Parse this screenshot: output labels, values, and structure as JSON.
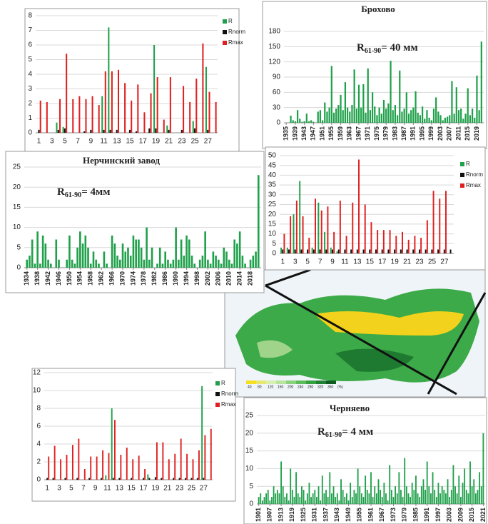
{
  "chart_data": [
    {
      "type": "bar",
      "ylim": [
        0,
        8
      ],
      "yticks": [
        0,
        1,
        2,
        3,
        4,
        5,
        6,
        7,
        8
      ],
      "grid": true,
      "legend": "right",
      "categories": [
        "1",
        null,
        "3",
        null,
        "5",
        null,
        "7",
        null,
        "9",
        null,
        "11",
        null,
        "13",
        null,
        "15",
        null,
        "17",
        null,
        "19",
        null,
        "21",
        null,
        "23",
        null,
        "25",
        null,
        "27",
        null
      ],
      "series": [
        {
          "name": "R",
          "color": "#1fa04a",
          "values": [
            0,
            0,
            0,
            0.7,
            0.4,
            0,
            0,
            0,
            0,
            0,
            2.5,
            7.2,
            0,
            0,
            0,
            0,
            0,
            0,
            6.0,
            0,
            0.5,
            0,
            0,
            0,
            0.8,
            0,
            4.5,
            0
          ]
        },
        {
          "name": "Rnorm",
          "color": "#111111",
          "values": [
            0.2,
            0,
            0,
            0.2,
            0.3,
            0,
            0,
            0.1,
            0.2,
            0,
            0.2,
            0.2,
            0.2,
            0,
            0.2,
            0.1,
            0,
            0.3,
            0.3,
            0,
            0.2,
            0,
            0.2,
            0,
            0.3,
            0,
            0.2,
            0
          ]
        },
        {
          "name": "Rmax",
          "color": "#e02020",
          "values": [
            2.2,
            2.1,
            0,
            2.3,
            5.4,
            2.3,
            2.5,
            2.3,
            2.5,
            1.9,
            4.2,
            4.2,
            4.3,
            3.4,
            2.2,
            3.3,
            1.4,
            2.7,
            3.8,
            0.9,
            3.8,
            0,
            3.2,
            2.1,
            3.7,
            6.1,
            2.8,
            2.1
          ]
        }
      ]
    },
    {
      "type": "bar",
      "title": "Брохово",
      "annotation": {
        "symbol": "R",
        "subscript": "61-90",
        "text": "= 40 мм"
      },
      "color": "#1fa04a",
      "grid": true,
      "ylim": [
        0,
        180
      ],
      "yticks": [
        0,
        30,
        60,
        90,
        120,
        150,
        180
      ],
      "xlim": [
        1934,
        2022
      ],
      "xticks": [
        1935,
        1939,
        1943,
        1947,
        1951,
        1955,
        1959,
        1963,
        1967,
        1971,
        1975,
        1979,
        1983,
        1987,
        1991,
        1995,
        1999,
        2003,
        2007,
        2011,
        2015,
        2019
      ],
      "x": [
        1935,
        1936,
        1937,
        1938,
        1939,
        1940,
        1941,
        1942,
        1943,
        1944,
        1945,
        1946,
        1947,
        1948,
        1949,
        1950,
        1951,
        1952,
        1953,
        1954,
        1955,
        1956,
        1957,
        1958,
        1959,
        1960,
        1961,
        1962,
        1963,
        1964,
        1965,
        1966,
        1967,
        1968,
        1969,
        1970,
        1971,
        1972,
        1973,
        1974,
        1975,
        1976,
        1977,
        1978,
        1979,
        1980,
        1981,
        1982,
        1983,
        1984,
        1985,
        1986,
        1987,
        1988,
        1989,
        1990,
        1991,
        1992,
        1993,
        1994,
        1995,
        1996,
        1997,
        1998,
        1999,
        2000,
        2001,
        2002,
        2003,
        2004,
        2005,
        2006,
        2007,
        2008,
        2009,
        2010,
        2011,
        2012,
        2013,
        2014,
        2015,
        2016,
        2017,
        2018,
        2019,
        2020,
        2021
      ],
      "values": [
        0,
        0,
        14,
        5,
        3,
        25,
        8,
        2,
        3,
        18,
        3,
        5,
        2,
        0,
        22,
        25,
        5,
        40,
        22,
        30,
        112,
        20,
        28,
        35,
        55,
        25,
        80,
        30,
        22,
        35,
        105,
        28,
        75,
        30,
        76,
        20,
        107,
        25,
        60,
        32,
        15,
        30,
        18,
        45,
        28,
        38,
        122,
        25,
        35,
        15,
        103,
        22,
        28,
        60,
        18,
        25,
        30,
        62,
        20,
        15,
        32,
        8,
        25,
        10,
        5,
        28,
        50,
        22,
        15,
        5,
        10,
        12,
        15,
        82,
        18,
        70,
        25,
        28,
        8,
        18,
        68,
        15,
        28,
        10,
        93,
        25,
        160
      ]
    },
    {
      "type": "bar",
      "title": "Нерчинский завод",
      "annotation": {
        "symbol": "R",
        "subscript": "61-90",
        "text": "= 4мм"
      },
      "color": "#1fa04a",
      "grid": true,
      "ylim": [
        0,
        25
      ],
      "yticks": [
        0,
        5,
        10,
        15,
        20,
        25
      ],
      "xlim": [
        1933,
        2022
      ],
      "xticks": [
        1934,
        1938,
        1942,
        1946,
        1950,
        1954,
        1958,
        1962,
        1966,
        1970,
        1974,
        1978,
        1982,
        1986,
        1990,
        1994,
        1998,
        2002,
        2006,
        2010,
        2014,
        2018
      ],
      "x": [
        1934,
        1935,
        1936,
        1937,
        1938,
        1939,
        1940,
        1941,
        1942,
        1943,
        1944,
        1945,
        1946,
        1947,
        1948,
        1949,
        1950,
        1951,
        1952,
        1953,
        1954,
        1955,
        1956,
        1957,
        1958,
        1959,
        1960,
        1961,
        1962,
        1963,
        1964,
        1965,
        1966,
        1967,
        1968,
        1969,
        1970,
        1971,
        1972,
        1973,
        1974,
        1975,
        1976,
        1977,
        1978,
        1979,
        1980,
        1981,
        1982,
        1983,
        1984,
        1985,
        1986,
        1987,
        1988,
        1989,
        1990,
        1991,
        1992,
        1993,
        1994,
        1995,
        1996,
        1997,
        1998,
        1999,
        2000,
        2001,
        2002,
        2003,
        2004,
        2005,
        2006,
        2007,
        2008,
        2009,
        2010,
        2011,
        2012,
        2013,
        2014,
        2015,
        2016,
        2017,
        2018,
        2019,
        2020,
        2021
      ],
      "values": [
        2,
        3,
        7,
        1,
        9,
        1,
        8,
        6,
        2,
        1,
        0,
        7,
        2,
        0,
        0,
        2,
        8,
        2,
        1,
        5,
        9,
        6,
        8,
        5,
        1,
        4,
        2,
        1,
        0,
        4,
        1,
        0,
        8,
        6,
        3,
        2,
        6,
        4,
        5,
        3,
        8,
        7,
        7,
        5,
        2,
        10,
        2,
        5,
        0,
        1,
        5,
        1,
        4,
        2,
        1,
        2,
        10,
        2,
        7,
        3,
        8,
        7,
        3,
        1,
        0,
        2,
        3,
        9,
        2,
        1,
        4,
        3,
        2,
        1,
        5,
        4,
        2,
        1,
        7,
        6,
        9,
        3,
        1,
        0,
        2,
        3,
        4,
        23
      ]
    },
    {
      "type": "bar",
      "ylim": [
        0,
        50
      ],
      "yticks": [
        0,
        5,
        10,
        15,
        20,
        25,
        30,
        35,
        40,
        45,
        50
      ],
      "grid": true,
      "legend": "right",
      "categories": [
        "1",
        null,
        "3",
        null,
        "5",
        null,
        "7",
        null,
        "9",
        null,
        "11",
        null,
        "13",
        null,
        "15",
        null,
        "17",
        null,
        "19",
        null,
        "21",
        null,
        "23",
        null,
        "25",
        null,
        "27",
        null
      ],
      "series": [
        {
          "name": "R",
          "color": "#1fa04a",
          "values": [
            3,
            3,
            20,
            37,
            0,
            3,
            26,
            11,
            3,
            1,
            0,
            0,
            0,
            0,
            0,
            0,
            0,
            0,
            0,
            0,
            0,
            0,
            0,
            0,
            0,
            0,
            0,
            0
          ]
        },
        {
          "name": "Rnorm",
          "color": "#111111",
          "values": [
            2,
            2,
            2,
            2,
            2,
            2,
            2,
            2,
            2,
            2,
            2,
            2,
            2,
            2,
            2,
            2,
            2,
            2,
            2,
            2,
            2,
            2,
            2,
            2,
            2,
            2,
            2,
            2
          ]
        },
        {
          "name": "Rmax",
          "color": "#e02020",
          "values": [
            10,
            19,
            27,
            19,
            8,
            28,
            22,
            24,
            11,
            27,
            9,
            26,
            48,
            25,
            16,
            12,
            12,
            12,
            9,
            11,
            7,
            9,
            8,
            17,
            32,
            28,
            32,
            0
          ]
        }
      ]
    },
    {
      "type": "bar",
      "ylim": [
        0,
        12
      ],
      "yticks": [
        0,
        2,
        4,
        6,
        8,
        10,
        12
      ],
      "grid": true,
      "legend": "right",
      "categories": [
        "1",
        null,
        "3",
        null,
        "5",
        null,
        "7",
        null,
        "9",
        null,
        "11",
        null,
        "13",
        null,
        "15",
        null,
        "17",
        null,
        "19",
        null,
        "21",
        null,
        "23",
        null,
        "25",
        null,
        "27",
        null
      ],
      "series": [
        {
          "name": "R",
          "color": "#1fa04a",
          "values": [
            0,
            0,
            0,
            0,
            0,
            0,
            0,
            0,
            0,
            0,
            0.5,
            8,
            0,
            0,
            0,
            0,
            0,
            0.6,
            0,
            0,
            0,
            0,
            0,
            0,
            0,
            0,
            10.5,
            0
          ]
        },
        {
          "name": "Rnorm",
          "color": "#111111",
          "values": [
            0.2,
            0.2,
            0,
            0.2,
            0,
            0.2,
            0,
            0.2,
            0,
            0.2,
            0,
            0.2,
            0.2,
            0,
            0.2,
            0,
            0.2,
            0.2,
            0.3,
            0.2,
            0,
            0.2,
            0.2,
            0.2,
            0.2,
            0.2,
            0.2,
            0
          ]
        },
        {
          "name": "Rmax",
          "color": "#e02020",
          "values": [
            2.6,
            3.8,
            2.3,
            2.8,
            3.9,
            4.6,
            1.2,
            2.6,
            2.6,
            3.3,
            3,
            6.7,
            2.8,
            3.6,
            2.3,
            2.7,
            1.2,
            0,
            4.2,
            4.2,
            2.3,
            2.9,
            4.6,
            2.9,
            2.3,
            3.3,
            5,
            5.7
          ]
        }
      ]
    },
    {
      "type": "bar",
      "title": "Черняево",
      "annotation": {
        "symbol": "R",
        "subscript": "61-90",
        "text": "= 4 мм"
      },
      "color": "#1fa04a",
      "grid": true,
      "ylim": [
        0,
        25
      ],
      "yticks": [
        0,
        5,
        10,
        15,
        20,
        25
      ],
      "xlim": [
        1900,
        2022
      ],
      "xticks": [
        1901,
        1907,
        1913,
        1919,
        1925,
        1931,
        1937,
        1943,
        1949,
        1955,
        1961,
        1967,
        1973,
        1979,
        1985,
        1991,
        1997,
        2003,
        2009,
        2015,
        2021
      ],
      "x": [
        1901,
        1902,
        1903,
        1904,
        1905,
        1906,
        1907,
        1908,
        1909,
        1910,
        1911,
        1912,
        1913,
        1914,
        1915,
        1916,
        1917,
        1918,
        1919,
        1920,
        1921,
        1922,
        1923,
        1924,
        1925,
        1926,
        1927,
        1928,
        1929,
        1930,
        1931,
        1932,
        1933,
        1934,
        1935,
        1936,
        1937,
        1938,
        1939,
        1940,
        1941,
        1942,
        1943,
        1944,
        1945,
        1946,
        1947,
        1948,
        1949,
        1950,
        1951,
        1952,
        1953,
        1954,
        1955,
        1956,
        1957,
        1958,
        1959,
        1960,
        1961,
        1962,
        1963,
        1964,
        1965,
        1966,
        1967,
        1968,
        1969,
        1970,
        1971,
        1972,
        1973,
        1974,
        1975,
        1976,
        1977,
        1978,
        1979,
        1980,
        1981,
        1982,
        1983,
        1984,
        1985,
        1986,
        1987,
        1988,
        1989,
        1990,
        1991,
        1992,
        1993,
        1994,
        1995,
        1996,
        1997,
        1998,
        1999,
        2000,
        2001,
        2002,
        2003,
        2004,
        2005,
        2006,
        2007,
        2008,
        2009,
        2010,
        2011,
        2012,
        2013,
        2014,
        2015,
        2016,
        2017,
        2018,
        2019,
        2020,
        2021
      ],
      "values": [
        2,
        3,
        1,
        2,
        3,
        4,
        1,
        2,
        5,
        3,
        4,
        3,
        12,
        5,
        2,
        3,
        1,
        10,
        4,
        2,
        9,
        3,
        2,
        5,
        4,
        1,
        3,
        6,
        2,
        3,
        4,
        2,
        5,
        1,
        8,
        3,
        4,
        2,
        9,
        3,
        5,
        2,
        3,
        1,
        7,
        4,
        2,
        3,
        1,
        6,
        2,
        4,
        3,
        10,
        5,
        3,
        2,
        8,
        4,
        3,
        9,
        2,
        5,
        3,
        7,
        4,
        2,
        6,
        3,
        1,
        11,
        4,
        2,
        5,
        3,
        9,
        4,
        2,
        13,
        5,
        3,
        2,
        6,
        4,
        8,
        3,
        2,
        5,
        7,
        4,
        12,
        5,
        3,
        9,
        4,
        2,
        6,
        3,
        5,
        4,
        3,
        7,
        2,
        4,
        11,
        5,
        3,
        8,
        2,
        6,
        10,
        4,
        3,
        12,
        5,
        7,
        3,
        4,
        9,
        5,
        20
      ]
    }
  ],
  "map": {
    "scale_labels": [
      "40",
      "80",
      "120",
      "160",
      "200",
      "240",
      "280",
      "320",
      "360",
      "(%)"
    ]
  }
}
